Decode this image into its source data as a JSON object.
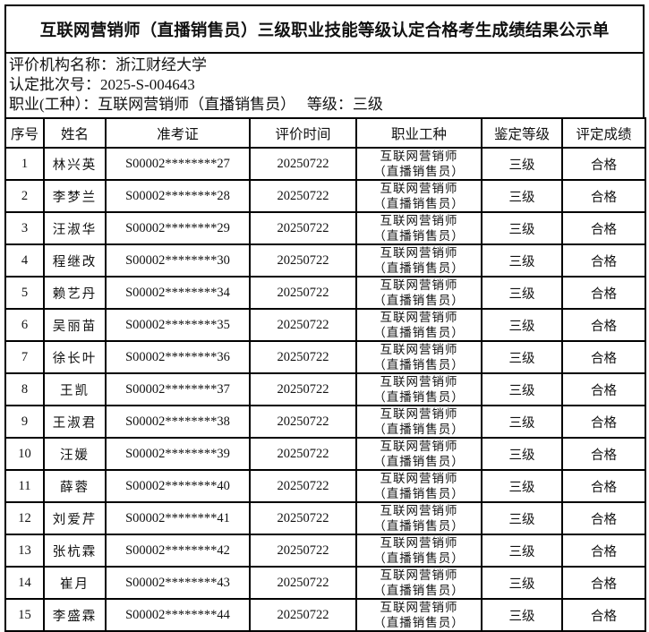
{
  "title": "互联网营销师（直播销售员）三级职业技能等级认定合格考生成绩结果公示单",
  "info": {
    "org": "评价机构名称：浙江财经大学",
    "batch": "认定批次号：2025-S-004643",
    "occupation": "职业(工种）：互联网营销师（直播销售员）   等级：三级"
  },
  "headers": [
    "序号",
    "姓名",
    "准考证",
    "评价时间",
    "职业工种",
    "鉴定等级",
    "评定成绩"
  ],
  "rows": [
    {
      "no": "1",
      "name": "林兴英",
      "id": "S00002********27",
      "date": "20250722",
      "prof1": "互联网营销师",
      "prof2": "（直播销售员）",
      "level": "三级",
      "result": "合格"
    },
    {
      "no": "2",
      "name": "李梦兰",
      "id": "S00002********28",
      "date": "20250722",
      "prof1": "互联网营销师",
      "prof2": "（直播销售员）",
      "level": "三级",
      "result": "合格"
    },
    {
      "no": "3",
      "name": "汪淑华",
      "id": "S00002********29",
      "date": "20250722",
      "prof1": "互联网营销师",
      "prof2": "（直播销售员）",
      "level": "三级",
      "result": "合格"
    },
    {
      "no": "4",
      "name": "程继改",
      "id": "S00002********30",
      "date": "20250722",
      "prof1": "互联网营销师",
      "prof2": "（直播销售员）",
      "level": "三级",
      "result": "合格"
    },
    {
      "no": "5",
      "name": "赖艺丹",
      "id": "S00002********34",
      "date": "20250722",
      "prof1": "互联网营销师",
      "prof2": "（直播销售员）",
      "level": "三级",
      "result": "合格"
    },
    {
      "no": "6",
      "name": "吴丽苗",
      "id": "S00002********35",
      "date": "20250722",
      "prof1": "互联网营销师",
      "prof2": "（直播销售员）",
      "level": "三级",
      "result": "合格"
    },
    {
      "no": "7",
      "name": "徐长叶",
      "id": "S00002********36",
      "date": "20250722",
      "prof1": "互联网营销师",
      "prof2": "（直播销售员）",
      "level": "三级",
      "result": "合格"
    },
    {
      "no": "8",
      "name": "王凯",
      "id": "S00002********37",
      "date": "20250722",
      "prof1": "互联网营销师",
      "prof2": "（直播销售员）",
      "level": "三级",
      "result": "合格"
    },
    {
      "no": "9",
      "name": "王淑君",
      "id": "S00002********38",
      "date": "20250722",
      "prof1": "互联网营销师",
      "prof2": "（直播销售员）",
      "level": "三级",
      "result": "合格"
    },
    {
      "no": "10",
      "name": "汪媛",
      "id": "S00002********39",
      "date": "20250722",
      "prof1": "互联网营销师",
      "prof2": "（直播销售员）",
      "level": "三级",
      "result": "合格"
    },
    {
      "no": "11",
      "name": "薛蓉",
      "id": "S00002********40",
      "date": "20250722",
      "prof1": "互联网营销师",
      "prof2": "（直播销售员）",
      "level": "三级",
      "result": "合格"
    },
    {
      "no": "12",
      "name": "刘爱芹",
      "id": "S00002********41",
      "date": "20250722",
      "prof1": "互联网营销师",
      "prof2": "（直播销售员）",
      "level": "三级",
      "result": "合格"
    },
    {
      "no": "13",
      "name": "张杭霖",
      "id": "S00002********42",
      "date": "20250722",
      "prof1": "互联网营销师",
      "prof2": "（直播销售员）",
      "level": "三级",
      "result": "合格"
    },
    {
      "no": "14",
      "name": "崔月",
      "id": "S00002********43",
      "date": "20250722",
      "prof1": "互联网营销师",
      "prof2": "（直播销售员）",
      "level": "三级",
      "result": "合格"
    },
    {
      "no": "15",
      "name": "李盛霖",
      "id": "S00002********44",
      "date": "20250722",
      "prof1": "互联网营销师",
      "prof2": "（直播销售员）",
      "level": "三级",
      "result": "合格"
    }
  ]
}
